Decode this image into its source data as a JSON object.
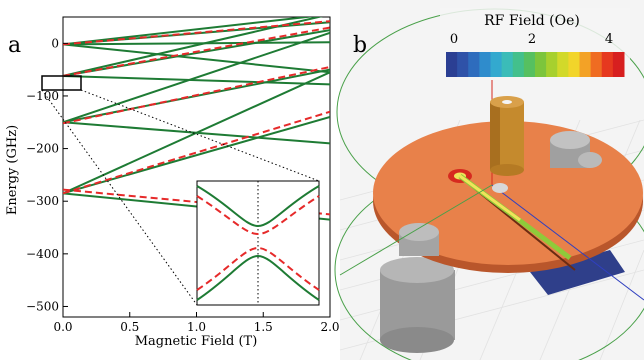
{
  "panel_a": {
    "label": "a",
    "xlabel": "Magnetic Field (T)",
    "ylabel": "Energy (GHz)"
  },
  "panel_b": {
    "label": "b",
    "colorbar": {
      "title": "RF Field (Oe)",
      "ticks": [
        "0",
        "2",
        "4"
      ],
      "colors": [
        "#2b3f93",
        "#2f52a8",
        "#2e6cbd",
        "#2f8ccc",
        "#33a9cf",
        "#3bbcb8",
        "#43c08c",
        "#56c060",
        "#7cc53c",
        "#a7d02e",
        "#d2d92a",
        "#f2d52a",
        "#f3a226",
        "#ef6c22",
        "#e6391f",
        "#d71f1f"
      ]
    },
    "colors": {
      "disk": "#e8814a",
      "disk_edge": "#b9562b",
      "pillar": "#c58a2d",
      "gray_post": "#a9a9a9",
      "dark_plate": "#2f3f8a",
      "wire": "#f0e35a",
      "circle": "#49a049"
    }
  },
  "chart_data": {
    "type": "line",
    "title": "",
    "xlabel": "Magnetic Field (T)",
    "ylabel": "Energy (GHz)",
    "xlim": [
      0,
      2.0
    ],
    "ylim": [
      -520,
      50
    ],
    "xticks": [
      0.0,
      0.5,
      1.0,
      1.5,
      2.0
    ],
    "xtick_labels": [
      "0.0",
      "0.5",
      "1.0",
      "1.5",
      "2.0"
    ],
    "yticks": [
      0,
      -100,
      -200,
      -300,
      -400,
      -500
    ],
    "ytick_labels": [
      "0",
      "−100",
      "−200",
      "−300",
      "−400",
      "−500"
    ],
    "grid": false,
    "series": [
      {
        "style": "solid-green",
        "x": [
          0,
          2.0
        ],
        "y": [
          -2,
          40
        ]
      },
      {
        "style": "solid-green",
        "x": [
          0,
          2.0
        ],
        "y": [
          -2,
          55
        ]
      },
      {
        "style": "solid-green",
        "x": [
          0,
          2.0
        ],
        "y": [
          -2,
          2
        ]
      },
      {
        "style": "solid-green",
        "x": [
          0,
          2.0
        ],
        "y": [
          -2,
          -55
        ]
      },
      {
        "style": "solid-green",
        "x": [
          0,
          2.0
        ],
        "y": [
          -62,
          55
        ]
      },
      {
        "style": "solid-green",
        "x": [
          0,
          2.0
        ],
        "y": [
          -62,
          25
        ]
      },
      {
        "style": "solid-green",
        "x": [
          0,
          2.0
        ],
        "y": [
          -62,
          -78
        ]
      },
      {
        "style": "solid-green",
        "x": [
          0,
          2.0
        ],
        "y": [
          -150,
          20
        ]
      },
      {
        "style": "solid-green",
        "x": [
          0,
          2.0
        ],
        "y": [
          -150,
          -50
        ]
      },
      {
        "style": "solid-green",
        "x": [
          0,
          2.0
        ],
        "y": [
          -150,
          -190
        ]
      },
      {
        "style": "solid-green",
        "x": [
          0,
          2.0
        ],
        "y": [
          -285,
          -55
        ]
      },
      {
        "style": "solid-green",
        "x": [
          0,
          2.0
        ],
        "y": [
          -285,
          -140
        ]
      },
      {
        "style": "solid-green",
        "x": [
          0,
          2.0
        ],
        "y": [
          -285,
          -335
        ]
      },
      {
        "style": "dashed-red",
        "x": [
          0,
          2.0
        ],
        "y": [
          -2,
          42
        ]
      },
      {
        "style": "dashed-red",
        "x": [
          0,
          2.0
        ],
        "y": [
          -62,
          30
        ]
      },
      {
        "style": "dashed-red",
        "x": [
          0,
          2.0
        ],
        "y": [
          -152,
          -45
        ]
      },
      {
        "style": "dashed-red",
        "x": [
          0,
          2.0
        ],
        "y": [
          -285,
          -130
        ]
      },
      {
        "style": "dashed-red",
        "x": [
          0,
          2.0
        ],
        "y": [
          -278,
          -325
        ]
      }
    ],
    "zoom_box": {
      "x": [
        0.0,
        0.13
      ],
      "y": [
        -85,
        -60
      ]
    },
    "inset": {
      "xlim": [
        0.0,
        0.13
      ],
      "ylim": [
        -85,
        -60
      ],
      "crossing_x": 0.065
    }
  }
}
